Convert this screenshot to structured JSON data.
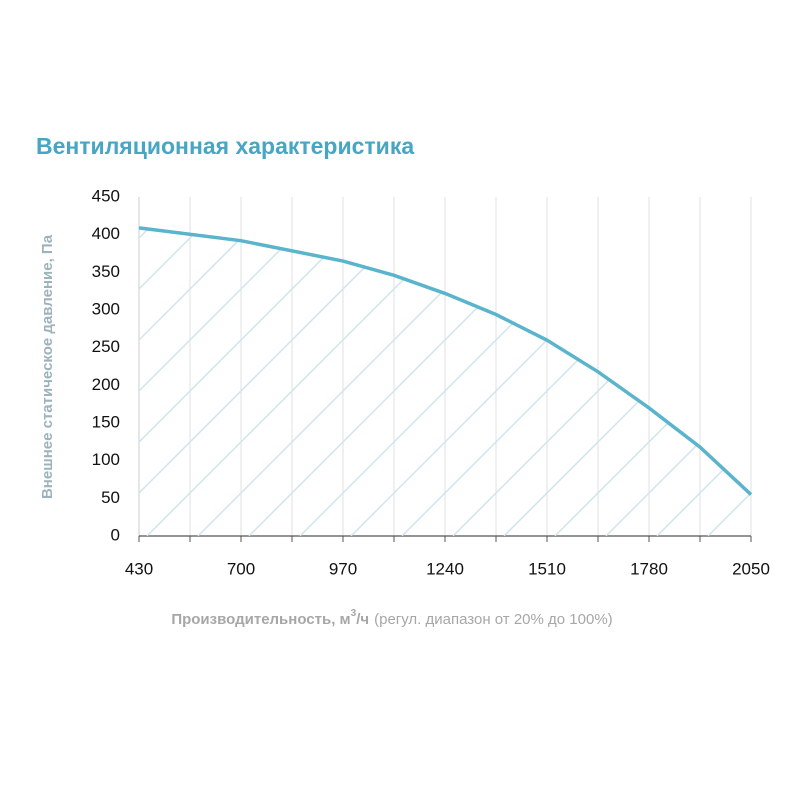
{
  "chart_data": {
    "type": "area-line",
    "title": "Вентиляционная характеристика",
    "y_label": "Внешнее статическое давление, Па",
    "x_label": {
      "main": "Производительность, м",
      "sup": "3",
      "unit": "/ч",
      "note": "(регул. диапазон от 20% до 100%)"
    },
    "x": [
      430,
      700,
      970,
      1105,
      1240,
      1375,
      1510,
      1645,
      1780,
      1915,
      2050
    ],
    "series": [
      {
        "name": "Вентиляционная характеристика",
        "color": "#5ab4cc",
        "values": [
          409,
          392,
          365,
          346,
          322,
          294,
          260,
          218,
          170,
          118,
          55
        ]
      }
    ],
    "xlim": [
      430,
      2050
    ],
    "xticks": [
      430,
      700,
      970,
      1240,
      1510,
      1780,
      2050
    ],
    "xgrid": [
      430,
      565,
      700,
      835,
      970,
      1105,
      1240,
      1375,
      1510,
      1645,
      1780,
      1915,
      2050
    ],
    "ylim": [
      0,
      450
    ],
    "yticks": [
      0,
      50,
      100,
      150,
      200,
      250,
      300,
      350,
      400,
      450
    ],
    "hatch_color": "#cfe4eb"
  }
}
